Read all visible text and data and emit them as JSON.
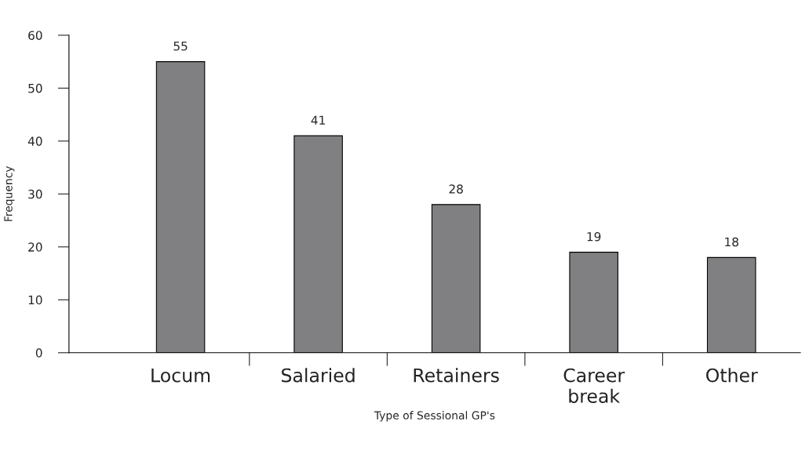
{
  "chart_data": {
    "type": "bar",
    "xlabel": "Type of Sessional GP's",
    "ylabel": "Frequency",
    "categories": [
      "Locum",
      "Salaried",
      "Retainers",
      "Career\nbreak",
      "Other"
    ],
    "values": [
      55,
      41,
      28,
      19,
      18
    ],
    "color": "#808083",
    "ylim": [
      0,
      60
    ],
    "yticks": [
      0,
      10,
      20,
      30,
      40,
      50,
      60
    ],
    "data_labels": true,
    "grid": false,
    "legend": false
  }
}
